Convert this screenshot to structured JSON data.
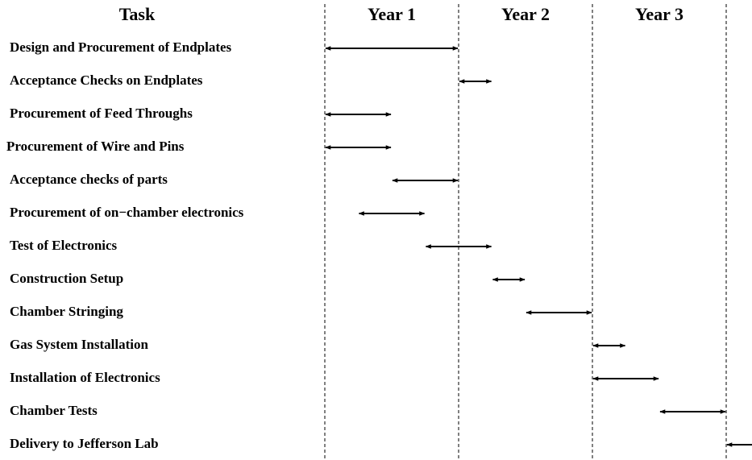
{
  "chart_data": {
    "type": "gantt",
    "column_header": "Task",
    "periods": [
      "Year 1",
      "Year 2",
      "Year 3"
    ],
    "categories": [
      "Design and Procurement of Endplates",
      "Acceptance Checks on Endplates",
      "Procurement of Feed Throughs",
      "Procurement of Wire and Pins",
      "Acceptance checks of parts",
      "Procurement of on−chamber electronics",
      "Test of Electronics",
      "Construction Setup",
      "Chamber Stringing",
      "Gas System Installation",
      "Installation of Electronics",
      "Chamber Tests",
      "Delivery to Jefferson Lab"
    ],
    "starts": [
      0,
      1,
      0,
      0,
      0.5,
      0.25,
      0.75,
      1.25,
      1.5,
      2,
      2,
      2.5,
      3
    ],
    "ends": [
      1,
      1.25,
      0.5,
      0.5,
      1,
      0.75,
      1.25,
      1.5,
      2,
      2.25,
      2.5,
      3,
      3.25
    ],
    "xlim": [
      0,
      3
    ],
    "xticks": [
      0,
      1,
      2,
      3
    ],
    "color": "#000000"
  }
}
